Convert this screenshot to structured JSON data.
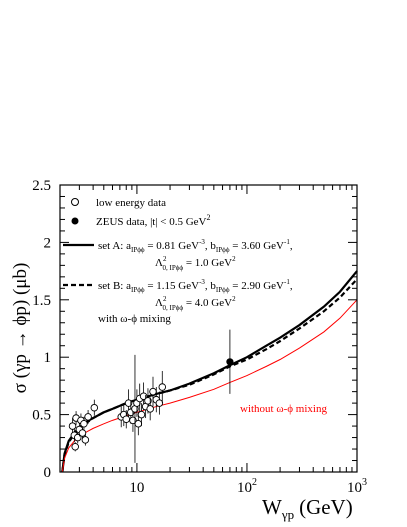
{
  "chart_data": {
    "type": "scatter",
    "xlabel_main": "W",
    "xlabel_sub": "γp",
    "xlabel_unit": "(GeV)",
    "ylabel": "σ (γp → ϕp) (μb)",
    "xscale": "log",
    "xlim": [
      2,
      1000
    ],
    "ylim": [
      0,
      2.5
    ],
    "xticks": [
      {
        "v": 10,
        "base": "10",
        "exp": ""
      },
      {
        "v": 100,
        "base": "10",
        "exp": "2"
      },
      {
        "v": 1000,
        "base": "10",
        "exp": "3"
      }
    ],
    "yticks": [
      "0",
      "0.5",
      "1",
      "1.5",
      "2",
      "2.5"
    ],
    "legend": {
      "low_energy": "low energy data",
      "zeus": "ZEUS data,  |t| < 0.5 GeV",
      "zeus_sup": "2",
      "setA_line1": "set A: a",
      "setA_line1_sub": "IPϕϕ",
      "setA_line1_b": " = 0.81 GeV",
      "setA_line1_bsup": "-3",
      "setA_line1_c": ", b",
      "setA_line1_csub": "IPϕϕ",
      "setA_line1_d": " = 3.60 GeV",
      "setA_line1_dsup": "-1",
      "setA_line1_e": ",",
      "setA_line2": "Λ",
      "setA_line2_sup": "2",
      "setA_line2_sub": "0, IPϕϕ",
      "setA_line2_b": " = 1.0 GeV",
      "setA_line2_bsup": "2",
      "setB_line1": "set B: a",
      "setB_line1_sub": "IPϕϕ",
      "setB_line1_b": " = 1.15 GeV",
      "setB_line1_bsup": "-3",
      "setB_line1_c": ", b",
      "setB_line1_csub": "IPϕϕ",
      "setB_line1_d": " = 2.90 GeV",
      "setB_line1_dsup": "-1",
      "setB_line1_e": ",",
      "setB_line2": "Λ",
      "setB_line2_sup": "2",
      "setB_line2_sub": "0, IPϕϕ",
      "setB_line2_b": " = 4.0 GeV",
      "setB_line2_bsup": "2",
      "mixing": "with  ω-ϕ mixing"
    },
    "annotation": "without  ω-ϕ mixing",
    "colors": {
      "set_a": "#000000",
      "set_b": "#000000",
      "no_mixing": "#ff0000",
      "data": "#000000"
    },
    "series": [
      {
        "name": "low energy data",
        "marker": "open-circle",
        "points": [
          {
            "x": 2.6,
            "y": 0.4,
            "err": 0.07
          },
          {
            "x": 2.7,
            "y": 0.32,
            "err": 0.06
          },
          {
            "x": 2.75,
            "y": 0.22,
            "err": 0.04
          },
          {
            "x": 2.8,
            "y": 0.47,
            "err": 0.06
          },
          {
            "x": 2.9,
            "y": 0.3,
            "err": 0.05
          },
          {
            "x": 3.0,
            "y": 0.37,
            "err": 0.06
          },
          {
            "x": 3.1,
            "y": 0.45,
            "err": 0.06
          },
          {
            "x": 3.2,
            "y": 0.34,
            "err": 0.05
          },
          {
            "x": 3.3,
            "y": 0.42,
            "err": 0.06
          },
          {
            "x": 3.4,
            "y": 0.28,
            "err": 0.05
          },
          {
            "x": 3.6,
            "y": 0.48,
            "err": 0.06
          },
          {
            "x": 4.1,
            "y": 0.56,
            "err": 0.07
          },
          {
            "x": 7.2,
            "y": 0.48,
            "err": 0.09
          },
          {
            "x": 7.6,
            "y": 0.5,
            "err": 0.1
          },
          {
            "x": 8.0,
            "y": 0.46,
            "err": 0.08
          },
          {
            "x": 8.4,
            "y": 0.6,
            "err": 0.12
          },
          {
            "x": 8.8,
            "y": 0.52,
            "err": 0.1
          },
          {
            "x": 9.2,
            "y": 0.45,
            "err": 0.1
          },
          {
            "x": 9.6,
            "y": 0.55,
            "err": 0.47
          },
          {
            "x": 10.0,
            "y": 0.6,
            "err": 0.12
          },
          {
            "x": 10.3,
            "y": 0.42,
            "err": 0.1
          },
          {
            "x": 10.6,
            "y": 0.64,
            "err": 0.13
          },
          {
            "x": 11.0,
            "y": 0.5,
            "err": 0.1
          },
          {
            "x": 11.5,
            "y": 0.66,
            "err": 0.12
          },
          {
            "x": 12.0,
            "y": 0.57,
            "err": 0.1
          },
          {
            "x": 12.6,
            "y": 0.62,
            "err": 0.11
          },
          {
            "x": 13.2,
            "y": 0.55,
            "err": 0.1
          },
          {
            "x": 14.0,
            "y": 0.7,
            "err": 0.13
          },
          {
            "x": 15.0,
            "y": 0.63,
            "err": 0.11
          },
          {
            "x": 16.0,
            "y": 0.6,
            "err": 0.1
          },
          {
            "x": 17.0,
            "y": 0.74,
            "err": 0.14
          }
        ]
      },
      {
        "name": "ZEUS data,  |t| < 0.5 GeV²",
        "marker": "filled-circle",
        "points": [
          {
            "x": 70,
            "y": 0.96,
            "err": 0.28
          }
        ]
      }
    ],
    "curves": [
      {
        "name": "set A",
        "style": "solid-thick",
        "points": [
          [
            2.1,
            0.0
          ],
          [
            2.2,
            0.16
          ],
          [
            2.4,
            0.27
          ],
          [
            2.7,
            0.34
          ],
          [
            3.0,
            0.39
          ],
          [
            3.5,
            0.44
          ],
          [
            4,
            0.47
          ],
          [
            5,
            0.52
          ],
          [
            6,
            0.55
          ],
          [
            8,
            0.6
          ],
          [
            10,
            0.63
          ],
          [
            15,
            0.68
          ],
          [
            20,
            0.71
          ],
          [
            30,
            0.77
          ],
          [
            50,
            0.86
          ],
          [
            70,
            0.93
          ],
          [
            100,
            1.0
          ],
          [
            150,
            1.1
          ],
          [
            200,
            1.17
          ],
          [
            300,
            1.28
          ],
          [
            500,
            1.44
          ],
          [
            700,
            1.57
          ],
          [
            1000,
            1.75
          ]
        ]
      },
      {
        "name": "set B",
        "style": "dashed-thick",
        "points": [
          [
            2.1,
            0.0
          ],
          [
            2.2,
            0.15
          ],
          [
            2.4,
            0.26
          ],
          [
            2.7,
            0.33
          ],
          [
            3.0,
            0.38
          ],
          [
            3.5,
            0.43
          ],
          [
            4,
            0.47
          ],
          [
            5,
            0.52
          ],
          [
            6,
            0.55
          ],
          [
            8,
            0.6
          ],
          [
            10,
            0.63
          ],
          [
            15,
            0.68
          ],
          [
            20,
            0.71
          ],
          [
            30,
            0.76
          ],
          [
            50,
            0.85
          ],
          [
            70,
            0.92
          ],
          [
            100,
            0.98
          ],
          [
            150,
            1.07
          ],
          [
            200,
            1.14
          ],
          [
            300,
            1.25
          ],
          [
            500,
            1.4
          ],
          [
            700,
            1.52
          ],
          [
            1000,
            1.68
          ]
        ]
      },
      {
        "name": "without ω-ϕ mixing",
        "style": "solid-thin-red",
        "points": [
          [
            2.1,
            0.0
          ],
          [
            2.2,
            0.12
          ],
          [
            2.4,
            0.21
          ],
          [
            2.7,
            0.27
          ],
          [
            3.0,
            0.31
          ],
          [
            3.5,
            0.35
          ],
          [
            4,
            0.38
          ],
          [
            5,
            0.42
          ],
          [
            6,
            0.45
          ],
          [
            8,
            0.49
          ],
          [
            10,
            0.52
          ],
          [
            15,
            0.57
          ],
          [
            20,
            0.6
          ],
          [
            30,
            0.65
          ],
          [
            50,
            0.72
          ],
          [
            70,
            0.78
          ],
          [
            100,
            0.84
          ],
          [
            150,
            0.92
          ],
          [
            200,
            0.98
          ],
          [
            300,
            1.08
          ],
          [
            500,
            1.22
          ],
          [
            700,
            1.34
          ],
          [
            1000,
            1.5
          ]
        ]
      }
    ]
  }
}
